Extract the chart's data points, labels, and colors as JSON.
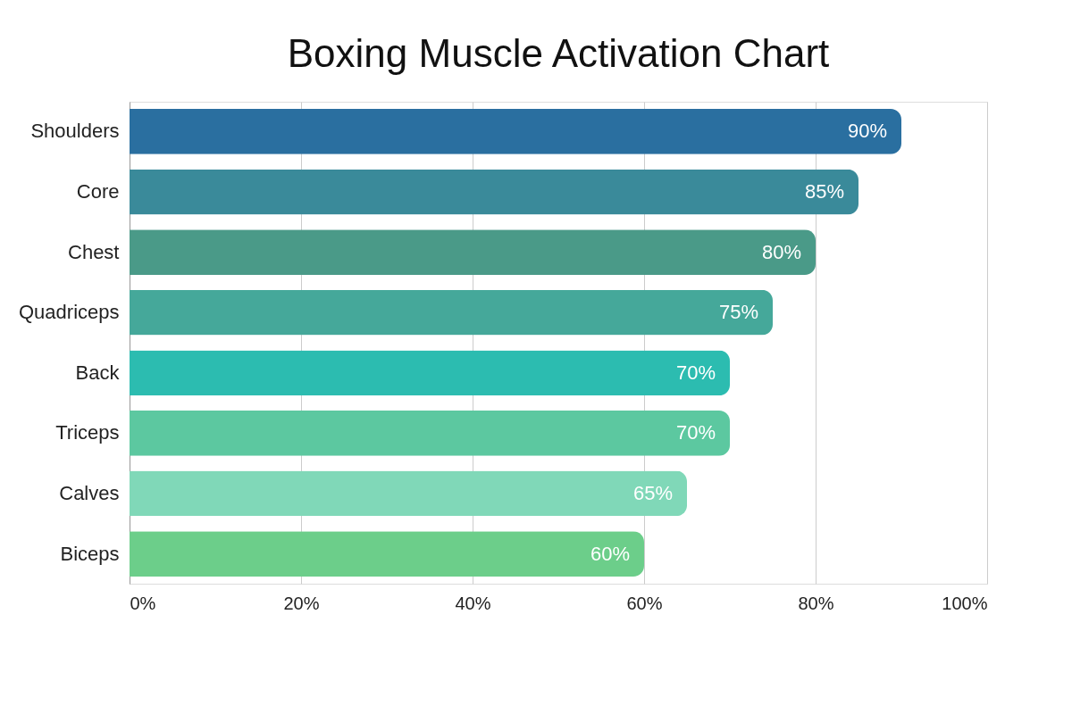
{
  "chart_data": {
    "type": "bar",
    "title": "Boxing Muscle Activation Chart",
    "orientation": "horizontal",
    "categories": [
      "Shoulders",
      "Core",
      "Chest",
      "Quadriceps",
      "Back",
      "Triceps",
      "Calves",
      "Biceps"
    ],
    "values": [
      90,
      85,
      80,
      75,
      70,
      70,
      65,
      60
    ],
    "colors": [
      "#2a6fa0",
      "#3a8a9a",
      "#4a9a88",
      "#45a89a",
      "#2cbcb0",
      "#5cc8a0",
      "#80d8b8",
      "#6cce8a"
    ],
    "value_labels": [
      "90%",
      "85%",
      "80%",
      "75%",
      "70%",
      "70%",
      "65%",
      "60%"
    ],
    "xlim": [
      0,
      100
    ],
    "xticks": [
      {
        "value": 0,
        "label": "0%"
      },
      {
        "value": 20,
        "label": "20%"
      },
      {
        "value": 40,
        "label": "40%"
      },
      {
        "value": 60,
        "label": "60%"
      },
      {
        "value": 80,
        "label": "80%"
      },
      {
        "value": 100,
        "label": "100%"
      }
    ],
    "grid": "x"
  }
}
